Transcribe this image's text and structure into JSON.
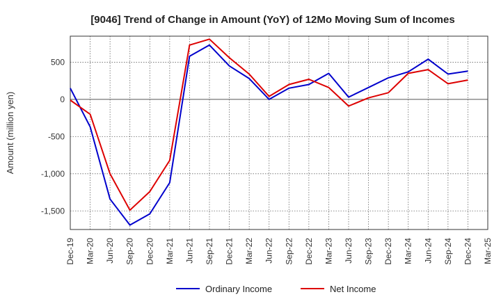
{
  "chart_data": {
    "type": "line",
    "title": "[9046]  Trend of Change in Amount (YoY) of 12Mo Moving Sum of Incomes",
    "xlabel": "",
    "ylabel": "Amount (million yen)",
    "ylim": [
      -1750,
      850
    ],
    "yticks": [
      500,
      0,
      -500,
      -1000,
      -1500
    ],
    "ytick_labels": [
      "500",
      "0",
      "-500",
      "-1,000",
      "-1,500"
    ],
    "categories": [
      "Dec-19",
      "Mar-20",
      "Jun-20",
      "Sep-20",
      "Dec-20",
      "Mar-21",
      "Jun-21",
      "Sep-21",
      "Dec-21",
      "Mar-22",
      "Jun-22",
      "Sep-22",
      "Dec-22",
      "Mar-23",
      "Jun-23",
      "Sep-23",
      "Dec-23",
      "Mar-24",
      "Jun-24",
      "Sep-24",
      "Dec-24",
      "Mar-25"
    ],
    "grid": true,
    "legend_position": "bottom",
    "series": [
      {
        "name": "Ordinary Income",
        "color": "#0000cc",
        "values": [
          150,
          -370,
          -1340,
          -1690,
          -1540,
          -1120,
          580,
          730,
          450,
          280,
          0,
          150,
          200,
          350,
          30,
          160,
          290,
          370,
          540,
          340,
          380,
          null
        ]
      },
      {
        "name": "Net Income",
        "color": "#dd0000",
        "values": [
          -10,
          -200,
          -1000,
          -1490,
          -1240,
          -820,
          730,
          810,
          560,
          340,
          40,
          200,
          270,
          160,
          -90,
          20,
          90,
          350,
          400,
          210,
          260,
          null
        ]
      }
    ]
  }
}
